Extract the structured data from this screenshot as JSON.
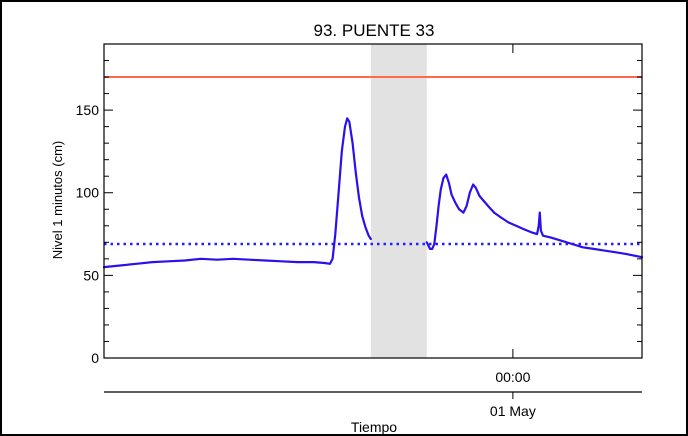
{
  "chart_data": {
    "type": "line",
    "title": "93. PUENTE 33",
    "xlabel": "Tiempo",
    "ylabel": "Nivel 1 minutos (cm)",
    "ylim": [
      0,
      190
    ],
    "xlim": [
      0,
      100
    ],
    "x_unit_note": "",
    "yticks": [
      0,
      50,
      100,
      150
    ],
    "time_tick": {
      "x": 76,
      "time_label": "00:00",
      "date_label": "01 May"
    },
    "threshold_line": {
      "y": 170,
      "color": "#ff6a4d"
    },
    "mean_line": {
      "y": 69,
      "color": "#2020ff"
    },
    "gap_band": {
      "x_start": 49.6,
      "x_end": 60,
      "color": "#e2e2e2"
    },
    "series": [
      {
        "color": "#2b10ee",
        "segments": [
          [
            [
              0,
              55
            ],
            [
              3,
              56
            ],
            [
              6,
              57
            ],
            [
              9,
              58
            ],
            [
              12,
              58.5
            ],
            [
              15,
              59
            ],
            [
              18,
              60
            ],
            [
              21,
              59.5
            ],
            [
              24,
              60
            ],
            [
              27,
              59.5
            ],
            [
              30,
              59
            ],
            [
              33,
              58.5
            ],
            [
              36,
              58
            ],
            [
              39,
              58
            ],
            [
              41,
              57.5
            ],
            [
              42,
              57
            ],
            [
              42.5,
              60
            ],
            [
              43,
              75
            ],
            [
              43.6,
              100
            ],
            [
              44.2,
              125
            ],
            [
              44.8,
              140
            ],
            [
              45.2,
              145
            ],
            [
              45.6,
              143
            ],
            [
              46.2,
              130
            ],
            [
              46.8,
              112
            ],
            [
              47.4,
              97
            ],
            [
              48,
              86
            ],
            [
              48.6,
              79
            ],
            [
              49.2,
              74
            ],
            [
              49.6,
              72
            ]
          ],
          [
            [
              60,
              70
            ],
            [
              60.6,
              66
            ],
            [
              61,
              66
            ],
            [
              61.4,
              69
            ],
            [
              61.8,
              80
            ],
            [
              62.2,
              92
            ],
            [
              62.6,
              102
            ],
            [
              63.1,
              109
            ],
            [
              63.6,
              111
            ],
            [
              64.1,
              106
            ],
            [
              64.6,
              99
            ],
            [
              65.3,
              94
            ],
            [
              66,
              90
            ],
            [
              66.8,
              88
            ],
            [
              67.4,
              92
            ],
            [
              68,
              100
            ],
            [
              68.6,
              105
            ],
            [
              69.1,
              103
            ],
            [
              69.8,
              98
            ],
            [
              70.6,
              95
            ],
            [
              71.4,
              92
            ],
            [
              72.5,
              88
            ],
            [
              73.8,
              85
            ],
            [
              75.2,
              82
            ],
            [
              76.6,
              80
            ],
            [
              78,
              78
            ],
            [
              79.5,
              76
            ],
            [
              80.5,
              75
            ],
            [
              80.8,
              80
            ],
            [
              81,
              88
            ],
            [
              81.2,
              77
            ],
            [
              81.6,
              74
            ],
            [
              83,
              73
            ],
            [
              85,
              71
            ],
            [
              87,
              69
            ],
            [
              89,
              67
            ],
            [
              91,
              66
            ],
            [
              93,
              65
            ],
            [
              95,
              64
            ],
            [
              97,
              63
            ],
            [
              100,
              61
            ]
          ]
        ]
      }
    ]
  }
}
